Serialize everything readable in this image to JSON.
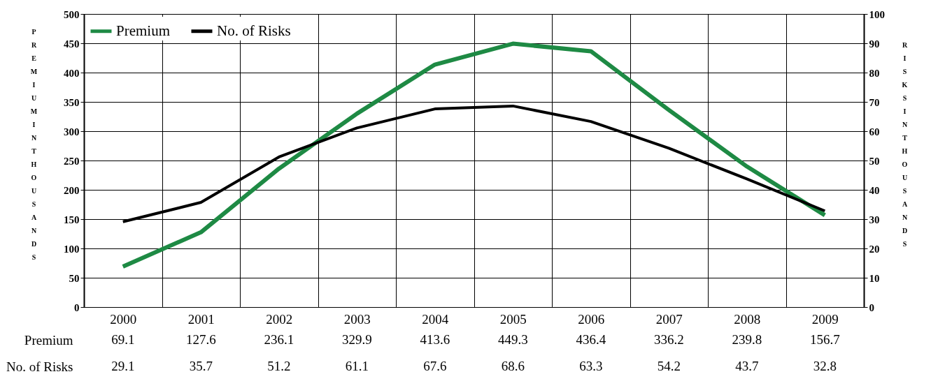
{
  "chart_data": {
    "type": "line",
    "categories": [
      "2000",
      "2001",
      "2002",
      "2003",
      "2004",
      "2005",
      "2006",
      "2007",
      "2008",
      "2009"
    ],
    "series": [
      {
        "name": "Premium",
        "color": "#1e8a44",
        "values": [
          69.1,
          127.6,
          236.1,
          329.9,
          413.6,
          449.3,
          436.4,
          336.2,
          239.8,
          156.7
        ]
      },
      {
        "name": "No. of Risks",
        "color": "#000000",
        "axis": "y2",
        "values": [
          29.1,
          35.7,
          51.2,
          61.1,
          67.6,
          68.6,
          63.3,
          54.2,
          43.7,
          32.8
        ]
      }
    ],
    "ylabel": "PREMIUM IN THOUSANDS",
    "y2label": "RISKS IN THOUSANDS",
    "ylim": [
      0,
      500
    ],
    "yticks": [
      0,
      50,
      100,
      150,
      200,
      250,
      300,
      350,
      400,
      450,
      500
    ],
    "y2lim": [
      0,
      100
    ],
    "y2ticks": [
      0,
      10,
      20,
      30,
      40,
      50,
      60,
      70,
      80,
      90,
      100
    ],
    "grid": true,
    "legend": "top left",
    "data_labels": true
  }
}
